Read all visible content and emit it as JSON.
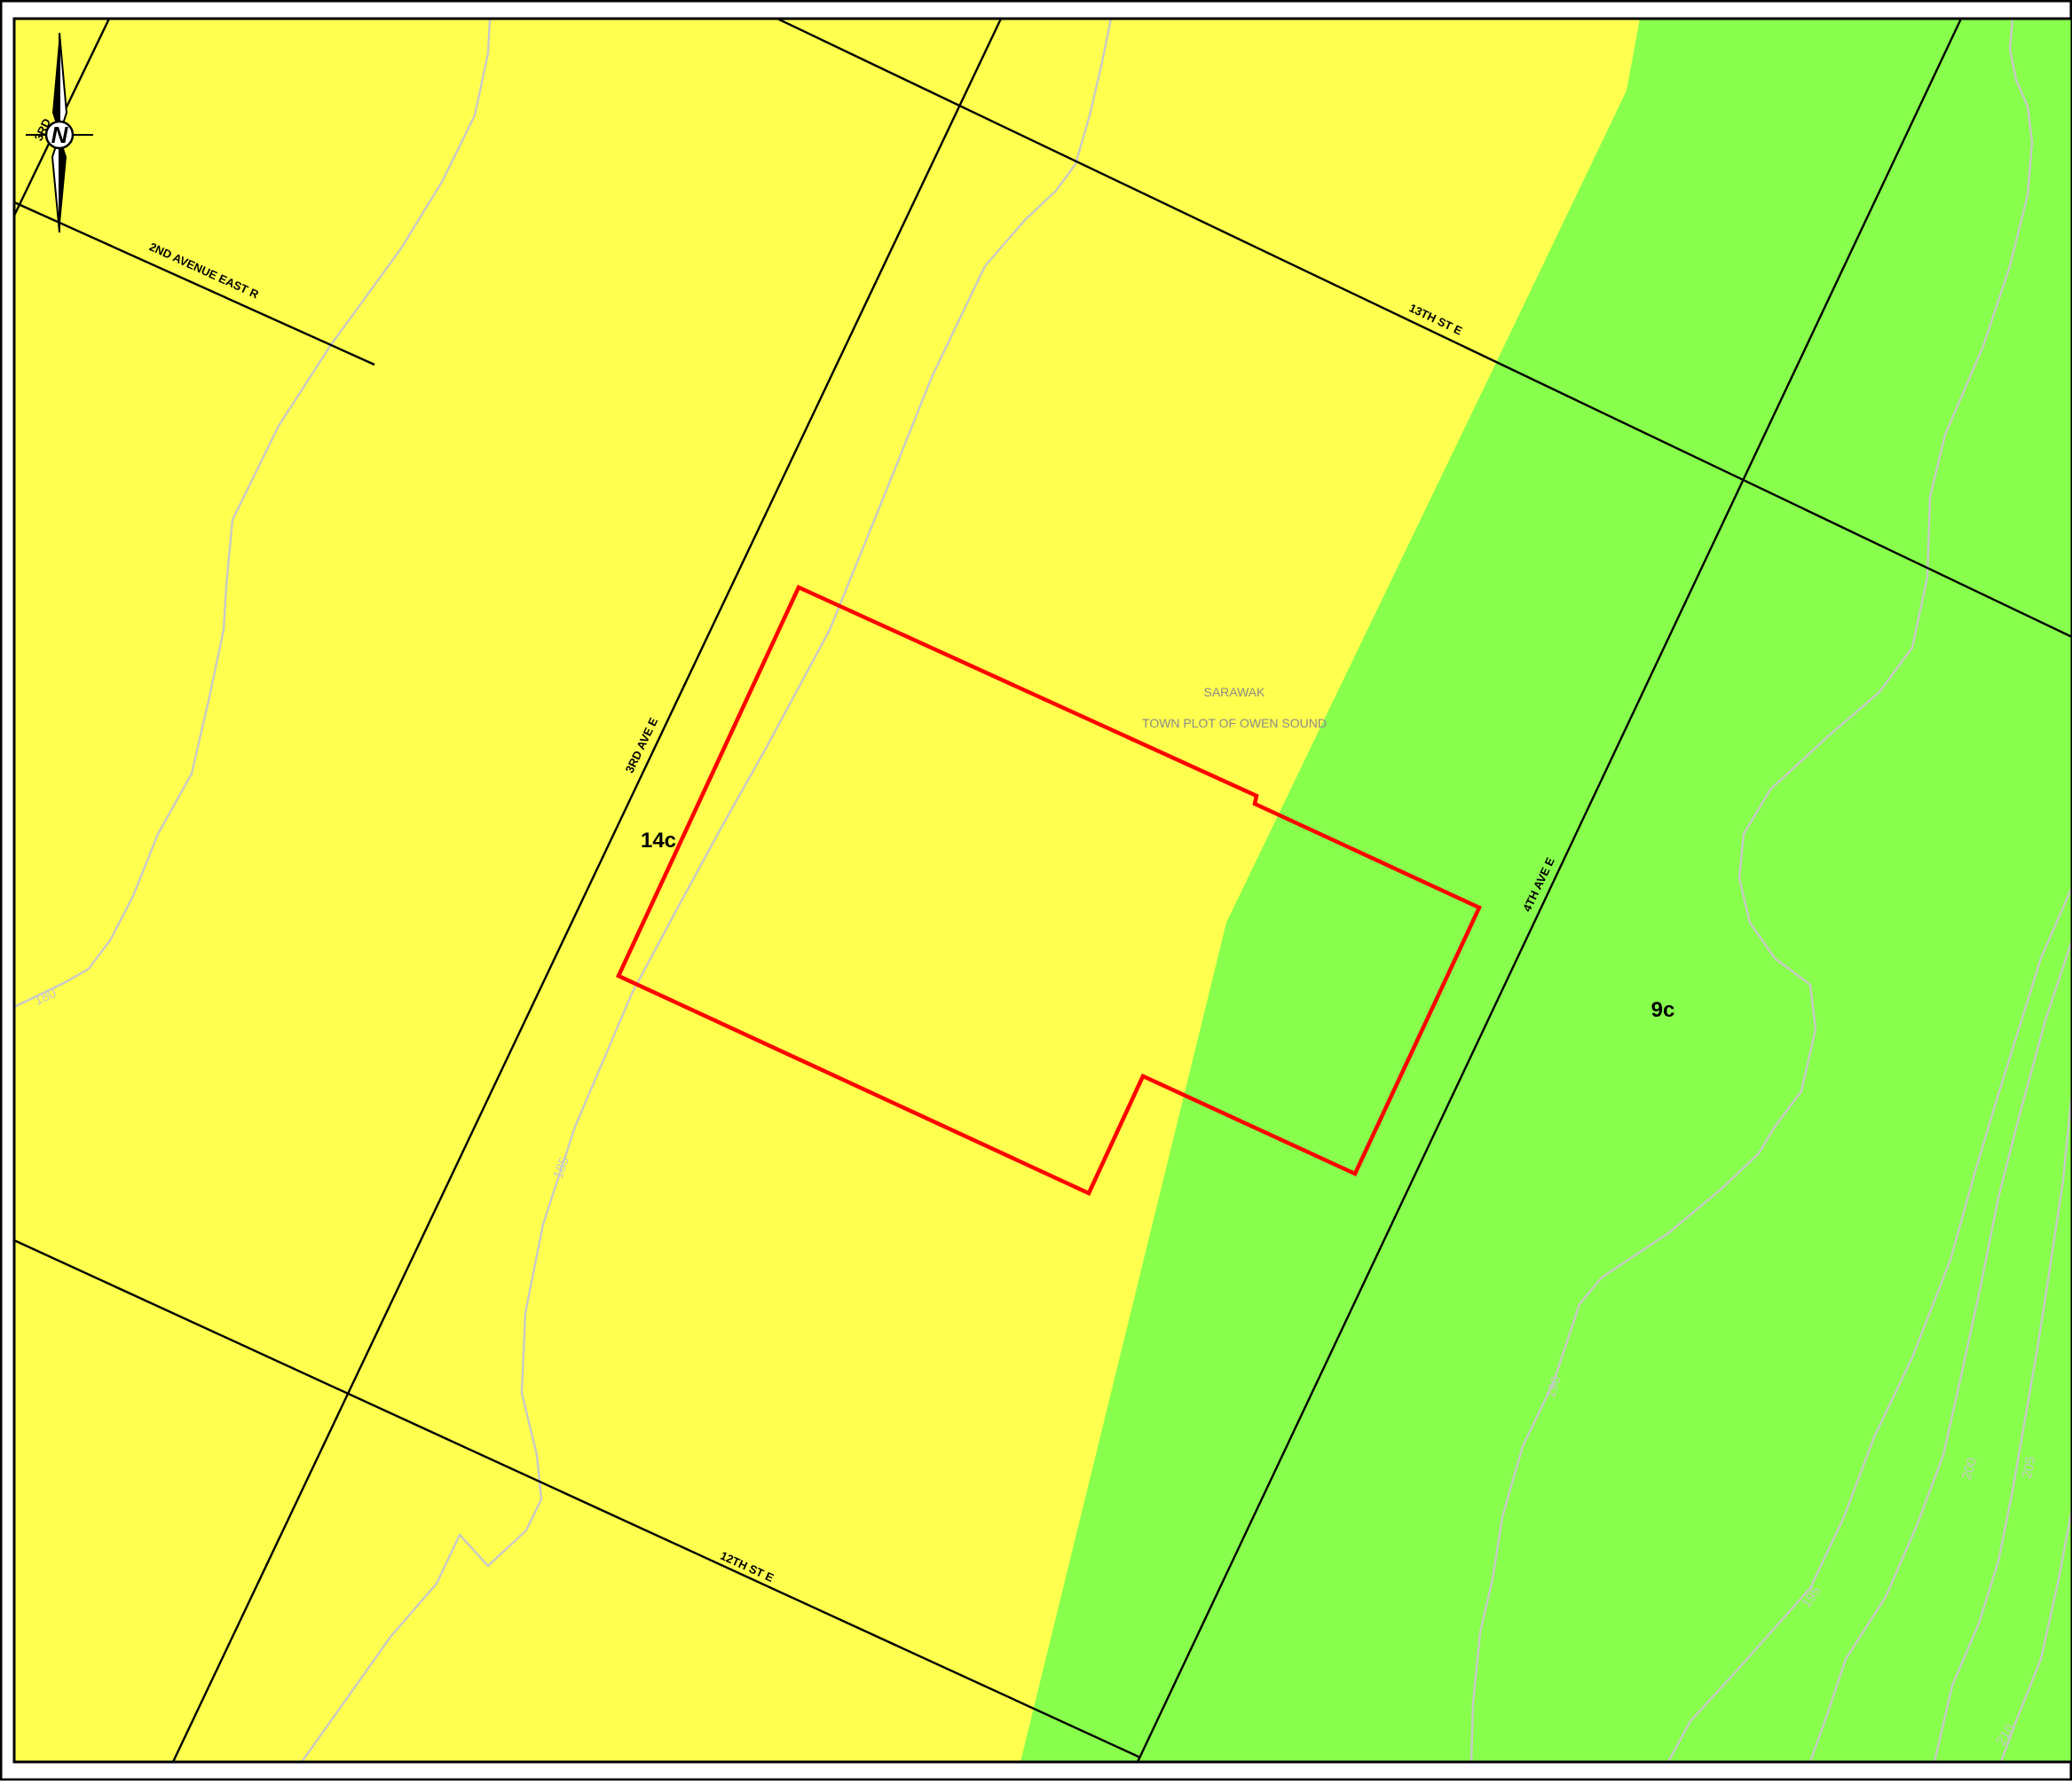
{
  "colors": {
    "zone_yellow": "#ffff4f",
    "zone_green": "#88ff4c",
    "subject_property": "#ff0000",
    "road": "#000000",
    "contour": "#c8c8c8"
  },
  "north_arrow": {
    "label": "N",
    "icon": "north-arrow-icon"
  },
  "roads": {
    "avenue_east_2nd": "2ND AVENUE EAST R",
    "street_13th": "13TH ST E",
    "avenue_3rd": "3RD AVE E",
    "avenue_4th": "4TH AVE E",
    "street_12th": "12TH ST E",
    "partial_3rd": "3RD"
  },
  "zones": {
    "yellow_label": "14c",
    "green_label": "9c"
  },
  "place_labels": {
    "line1": "SARAWAK",
    "line2": "TOWN PLOT OF OWEN SOUND"
  },
  "contours": [
    "180",
    "185",
    "190",
    "195",
    "200",
    "205",
    "210"
  ]
}
